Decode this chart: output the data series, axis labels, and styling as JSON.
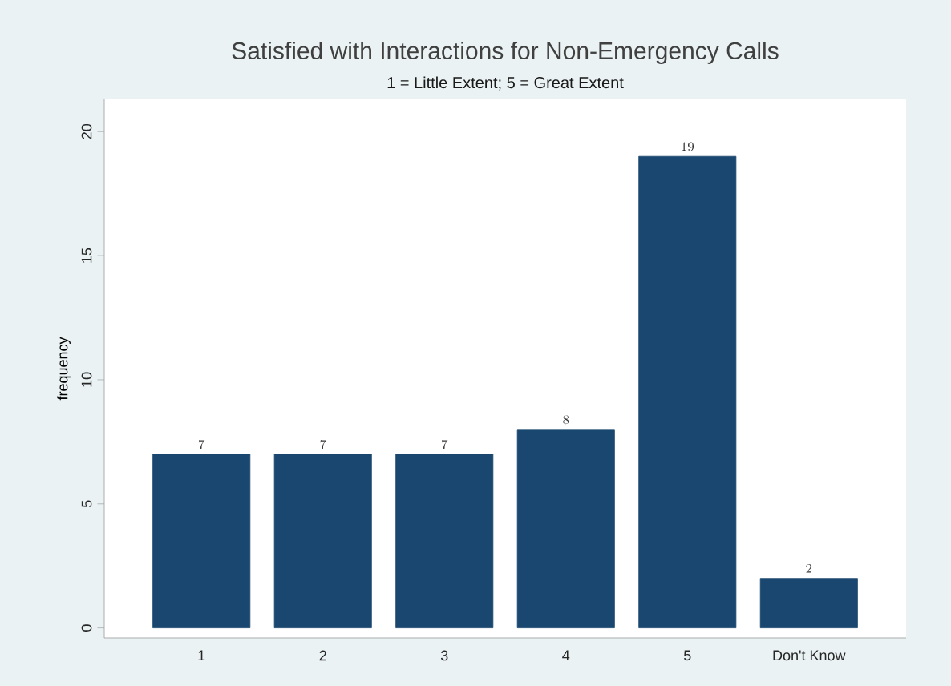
{
  "chart_data": {
    "type": "bar",
    "title": "Satisfied with Interactions for Non-Emergency Calls",
    "subtitle": "1 = Little Extent; 5 = Great Extent",
    "ylabel": "frequency",
    "categories": [
      "1",
      "2",
      "3",
      "4",
      "5",
      "Don't Know"
    ],
    "values": [
      7,
      7,
      7,
      8,
      19,
      2
    ],
    "color": "#1a476f",
    "ylim": [
      -0.4,
      21.3
    ],
    "yticks": [
      0,
      5,
      10,
      15,
      20
    ],
    "grid": false,
    "data_labels": true
  }
}
